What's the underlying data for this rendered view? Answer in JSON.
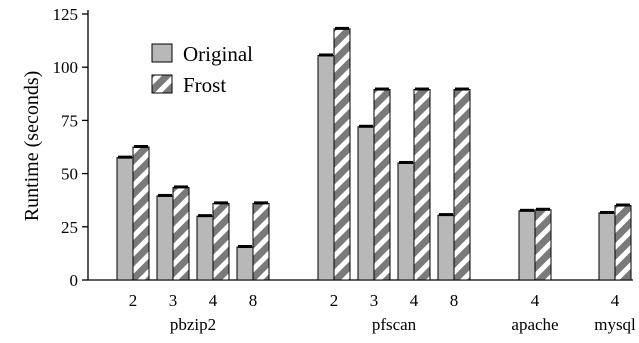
{
  "chart_data": {
    "type": "bar",
    "title": "",
    "xlabel": "",
    "ylabel": "Runtime (seconds)",
    "ylim": [
      0,
      125
    ],
    "yticks": [
      "0",
      "25",
      "50",
      "75",
      "100",
      "125"
    ],
    "grid": false,
    "legend_position": "top-left",
    "series": [
      {
        "name": "Original",
        "color": "#b8b8b8",
        "pattern": "solid"
      },
      {
        "name": "Frost",
        "color": "#7a7a7a",
        "pattern": "diagonal-stripes"
      }
    ],
    "groups": [
      {
        "name": "pbzip2",
        "bars": [
          {
            "label": "2",
            "original": 57.5,
            "frost": 62.5
          },
          {
            "label": "3",
            "original": 39.5,
            "frost": 43.5
          },
          {
            "label": "4",
            "original": 30.0,
            "frost": 36.0
          },
          {
            "label": "8",
            "original": 15.5,
            "frost": 36.0
          }
        ]
      },
      {
        "name": "pfscan",
        "bars": [
          {
            "label": "2",
            "original": 105.5,
            "frost": 118.0
          },
          {
            "label": "3",
            "original": 72.0,
            "frost": 89.5
          },
          {
            "label": "4",
            "original": 55.0,
            "frost": 89.5
          },
          {
            "label": "8",
            "original": 30.5,
            "frost": 89.5
          }
        ]
      },
      {
        "name": "apache",
        "bars": [
          {
            "label": "4",
            "original": 32.5,
            "frost": 33.0
          }
        ]
      },
      {
        "name": "mysql",
        "bars": [
          {
            "label": "4",
            "original": 31.5,
            "frost": 35.0
          }
        ]
      }
    ]
  }
}
